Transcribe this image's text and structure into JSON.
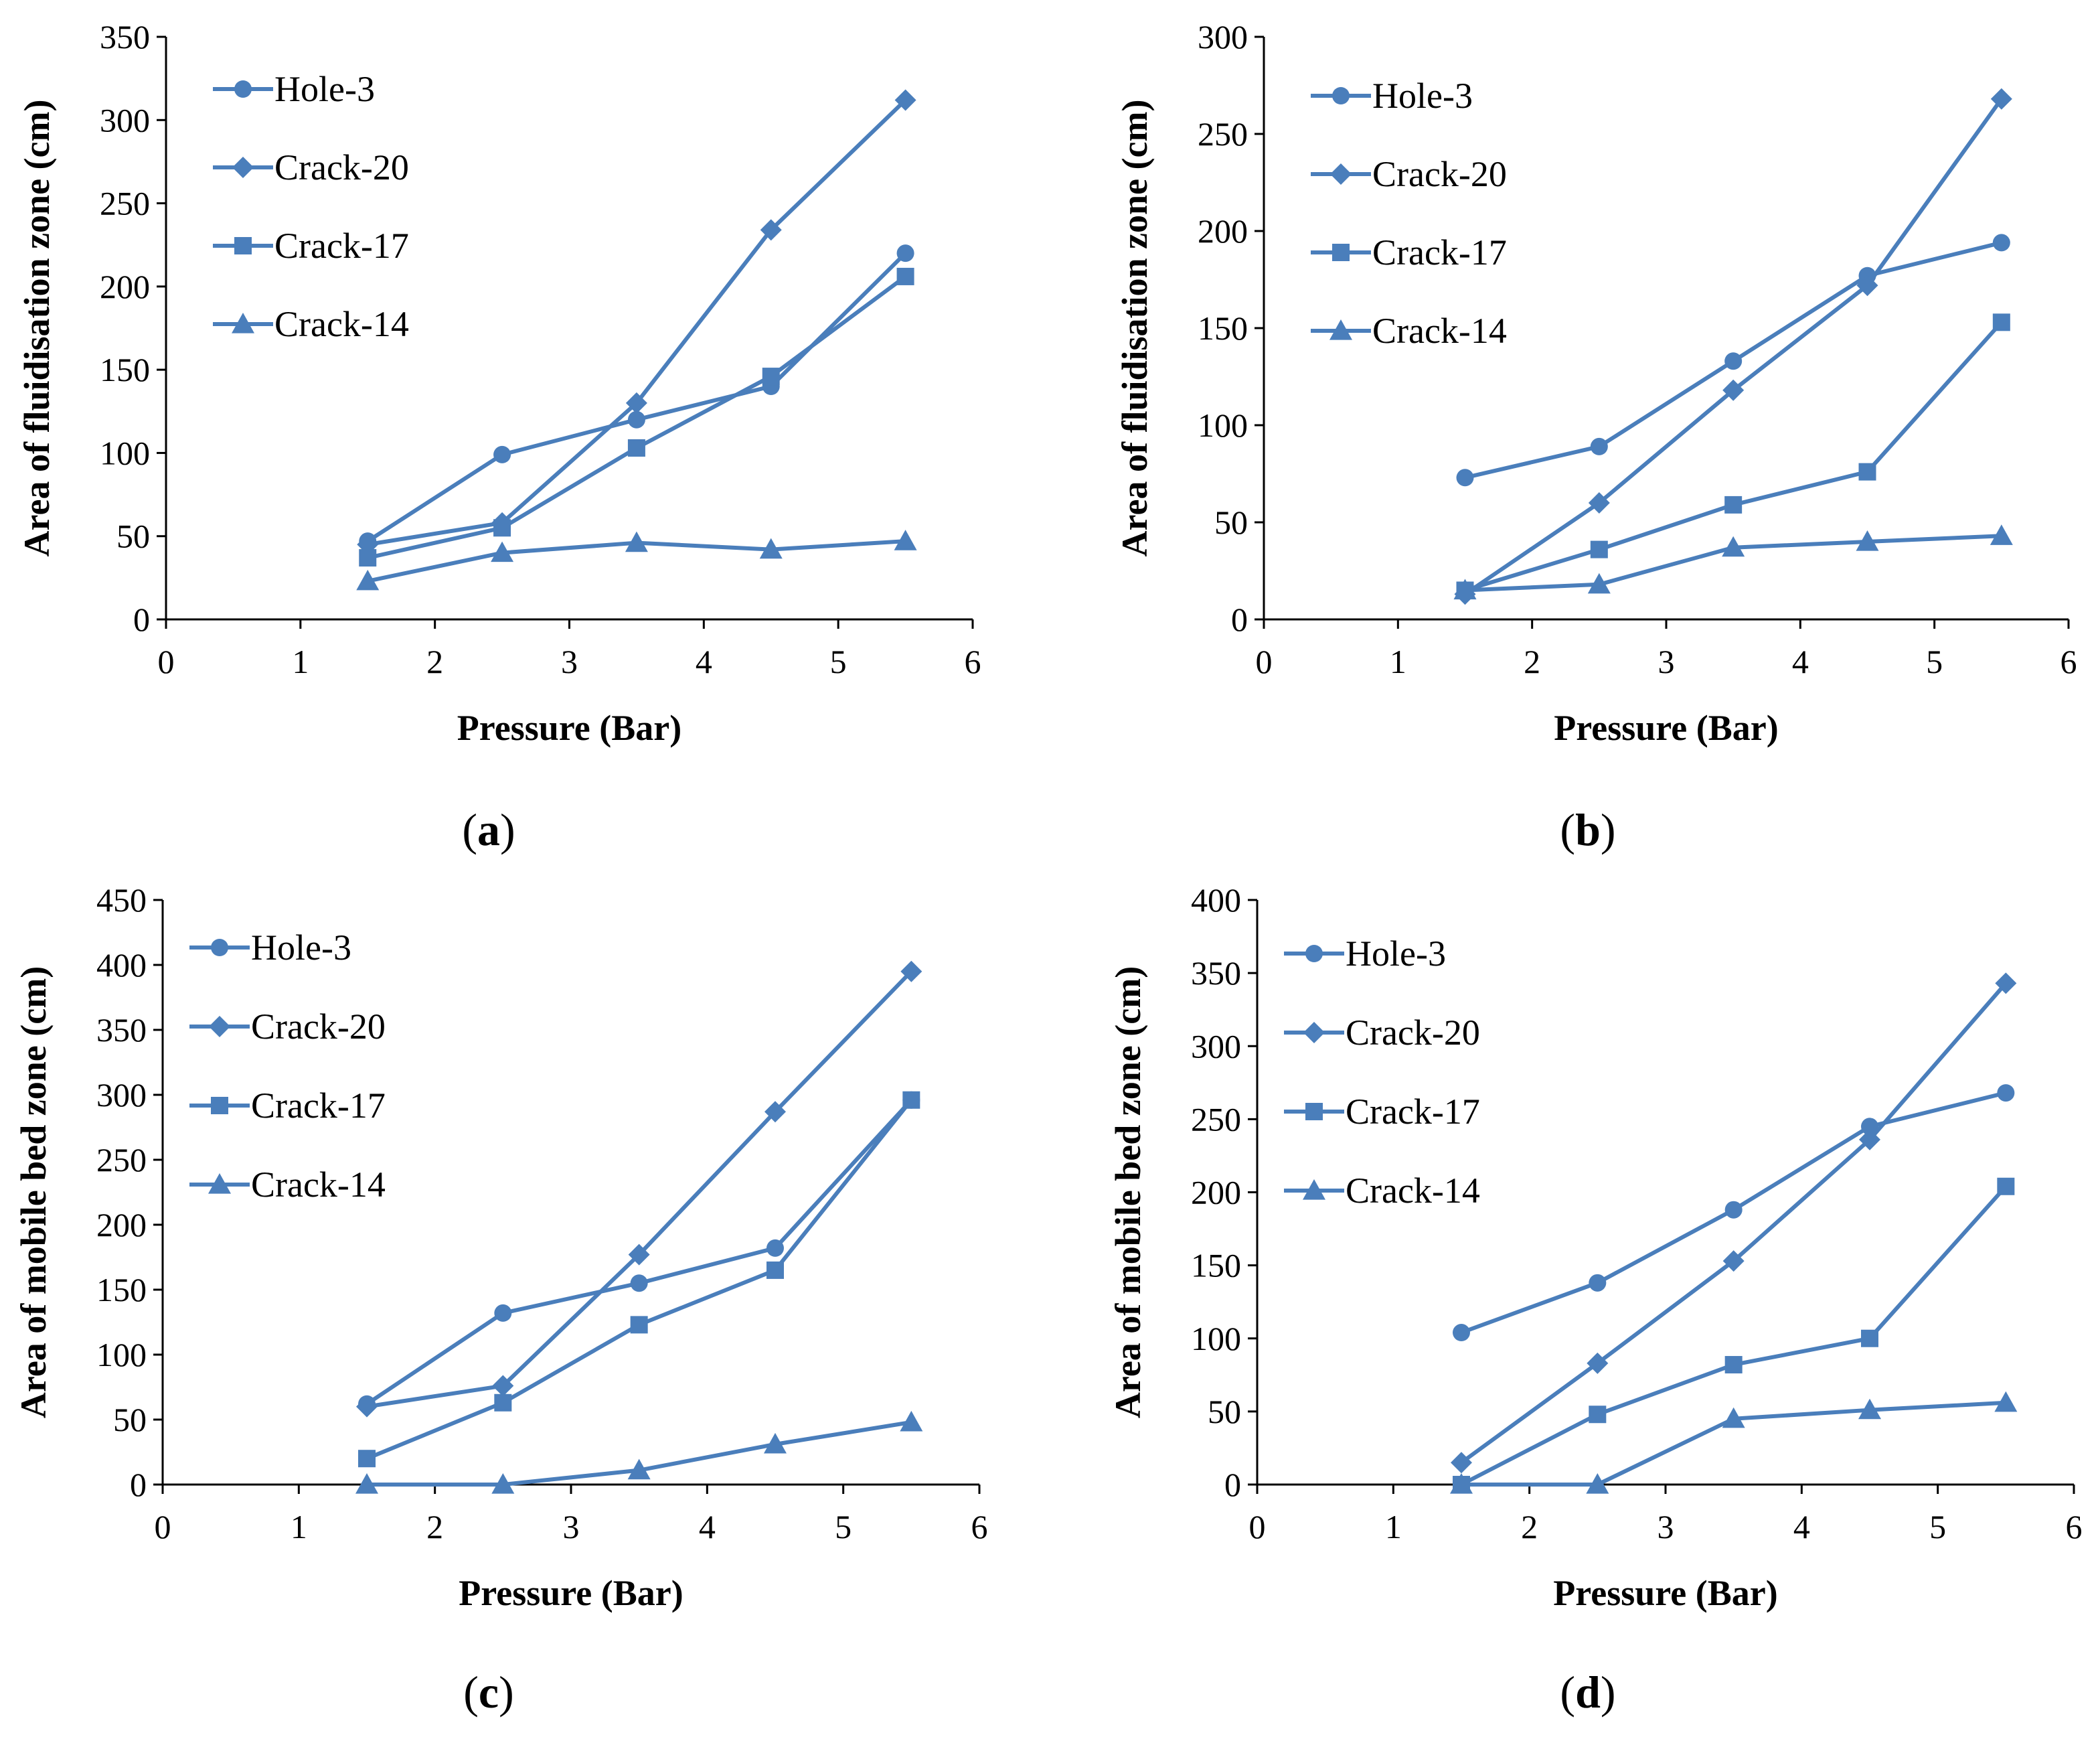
{
  "chart_data": [
    {
      "type": "line",
      "caption_letter": "a",
      "xlabel": "Pressure (Bar)",
      "ylabel": "Area of fluidisation zone (cm)",
      "xlim": [
        0,
        6
      ],
      "ylim": [
        0,
        350
      ],
      "xticks": [
        0,
        1,
        2,
        3,
        4,
        5,
        6
      ],
      "yticks": [
        0,
        50,
        100,
        150,
        200,
        250,
        300,
        350
      ],
      "x": [
        1.5,
        2.5,
        3.5,
        4.5,
        5.5
      ],
      "series": [
        {
          "name": "Hole-3",
          "marker": "circle",
          "values": [
            47,
            99,
            120,
            140,
            220
          ]
        },
        {
          "name": "Crack-20",
          "marker": "diamond",
          "values": [
            45,
            58,
            130,
            234,
            312
          ]
        },
        {
          "name": "Crack-17",
          "marker": "square",
          "values": [
            37,
            55,
            103,
            146,
            206
          ]
        },
        {
          "name": "Crack-14",
          "marker": "triangle",
          "values": [
            23,
            40,
            46,
            42,
            47
          ]
        }
      ]
    },
    {
      "type": "line",
      "caption_letter": "b",
      "xlabel": "Pressure (Bar)",
      "ylabel": "Area of fluidisation zone (cm)",
      "xlim": [
        0,
        6
      ],
      "ylim": [
        0,
        300
      ],
      "xticks": [
        0,
        1,
        2,
        3,
        4,
        5,
        6
      ],
      "yticks": [
        0,
        50,
        100,
        150,
        200,
        250,
        300
      ],
      "x": [
        1.5,
        2.5,
        3.5,
        4.5,
        5.5
      ],
      "series": [
        {
          "name": "Hole-3",
          "marker": "circle",
          "values": [
            73,
            89,
            133,
            177,
            194
          ]
        },
        {
          "name": "Crack-20",
          "marker": "diamond",
          "values": [
            13,
            60,
            118,
            172,
            268
          ]
        },
        {
          "name": "Crack-17",
          "marker": "square",
          "values": [
            15,
            36,
            59,
            76,
            153
          ]
        },
        {
          "name": "Crack-14",
          "marker": "triangle",
          "values": [
            15,
            18,
            37,
            40,
            43
          ]
        }
      ]
    },
    {
      "type": "line",
      "caption_letter": "c",
      "xlabel": "Pressure (Bar)",
      "ylabel": "Area of mobile bed zone (cm)",
      "xlim": [
        0,
        6
      ],
      "ylim": [
        0,
        450
      ],
      "xticks": [
        0,
        1,
        2,
        3,
        4,
        5,
        6
      ],
      "yticks": [
        0,
        50,
        100,
        150,
        200,
        250,
        300,
        350,
        400,
        450
      ],
      "x": [
        1.5,
        2.5,
        3.5,
        4.5,
        5.5
      ],
      "series": [
        {
          "name": "Hole-3",
          "marker": "circle",
          "values": [
            62,
            132,
            155,
            182,
            296
          ]
        },
        {
          "name": "Crack-20",
          "marker": "diamond",
          "values": [
            60,
            76,
            177,
            287,
            395
          ]
        },
        {
          "name": "Crack-17",
          "marker": "square",
          "values": [
            20,
            63,
            123,
            165,
            296
          ]
        },
        {
          "name": "Crack-14",
          "marker": "triangle",
          "values": [
            0,
            0,
            11,
            31,
            48
          ]
        }
      ]
    },
    {
      "type": "line",
      "caption_letter": "d",
      "xlabel": "Pressure (Bar)",
      "ylabel": "Area of mobile bed zone (cm)",
      "xlim": [
        0,
        6
      ],
      "ylim": [
        0,
        400
      ],
      "xticks": [
        0,
        1,
        2,
        3,
        4,
        5,
        6
      ],
      "yticks": [
        0,
        50,
        100,
        150,
        200,
        250,
        300,
        350,
        400
      ],
      "x": [
        1.5,
        2.5,
        3.5,
        4.5,
        5.5
      ],
      "series": [
        {
          "name": "Hole-3",
          "marker": "circle",
          "values": [
            104,
            138,
            188,
            245,
            268
          ]
        },
        {
          "name": "Crack-20",
          "marker": "diamond",
          "values": [
            15,
            83,
            153,
            236,
            343
          ]
        },
        {
          "name": "Crack-17",
          "marker": "square",
          "values": [
            0,
            48,
            82,
            100,
            204
          ]
        },
        {
          "name": "Crack-14",
          "marker": "triangle",
          "values": [
            0,
            0,
            45,
            51,
            56
          ]
        }
      ]
    }
  ],
  "style": {
    "series_color": "#4A7EBB",
    "axis_color": "#000000"
  }
}
